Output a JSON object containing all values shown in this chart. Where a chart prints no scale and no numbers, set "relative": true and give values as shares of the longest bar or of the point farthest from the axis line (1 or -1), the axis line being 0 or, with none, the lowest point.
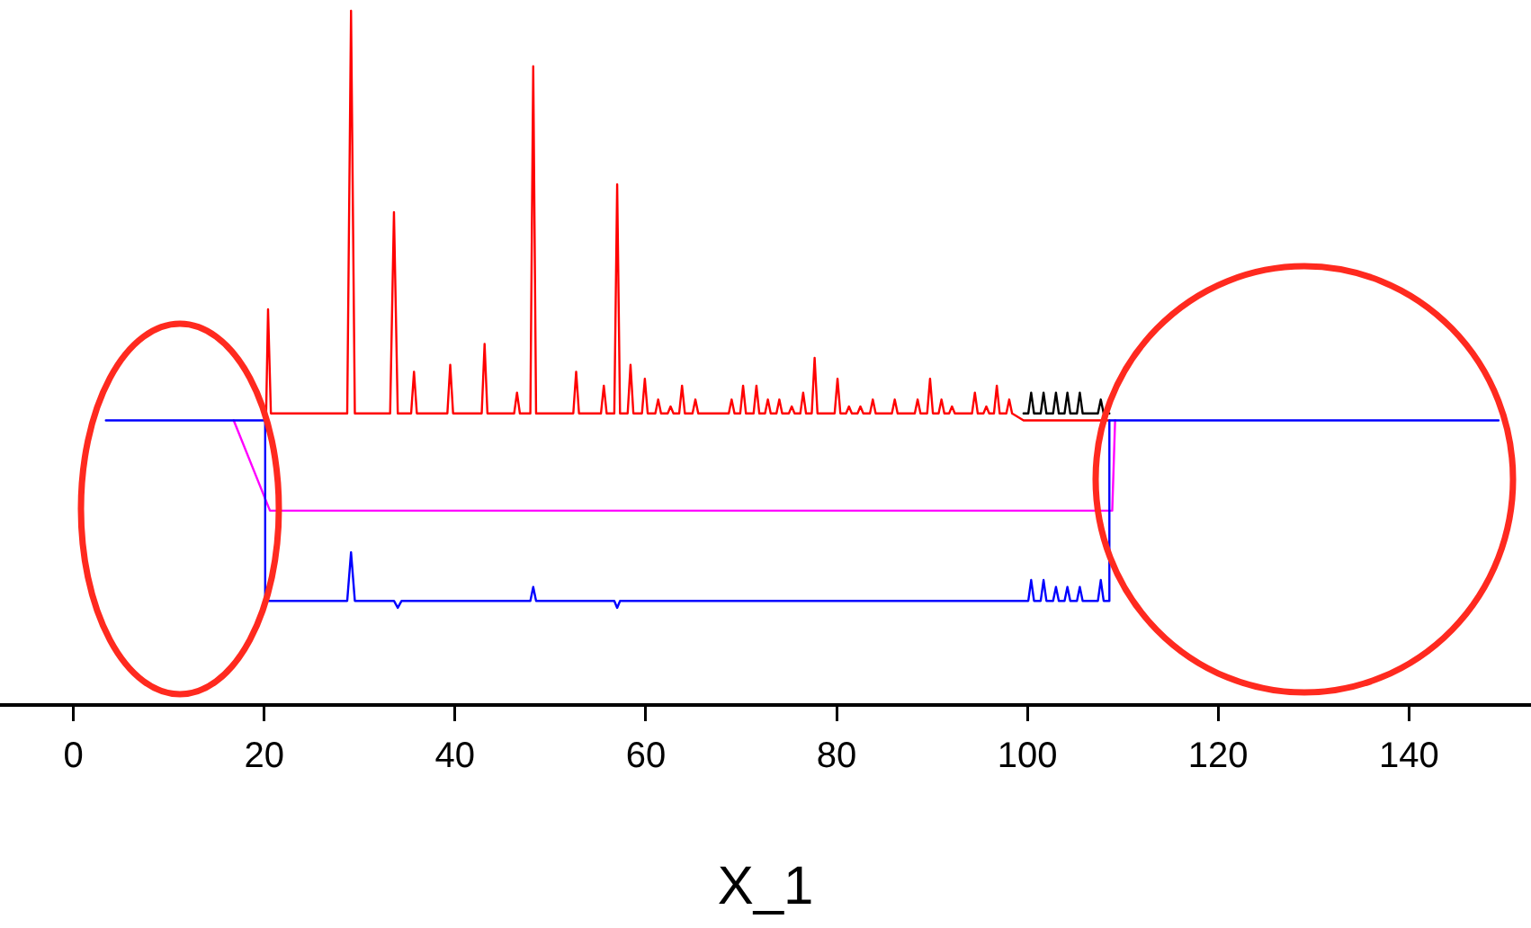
{
  "chart_data": {
    "type": "line",
    "xlabel": "X_1",
    "relative": true,
    "xlim": [
      -7.7,
      152.8
    ],
    "xticks": [
      0,
      20,
      40,
      60,
      80,
      100,
      120,
      140
    ],
    "grid": false,
    "legend": false,
    "marker": "none",
    "line_style": "solid",
    "series": [
      {
        "color": "#000000",
        "x": [
          99.6,
          100.1,
          100.4,
          100.7,
          101.4,
          101.7,
          102.0,
          102.7,
          103.0,
          103.3,
          103.9,
          104.2,
          104.5,
          105.2,
          105.5,
          105.8,
          107.4,
          107.7,
          108.0,
          108.6
        ],
        "values": [
          0.42,
          0.42,
          0.45,
          0.42,
          0.42,
          0.45,
          0.42,
          0.42,
          0.45,
          0.42,
          0.42,
          0.45,
          0.42,
          0.42,
          0.45,
          0.42,
          0.42,
          0.44,
          0.42,
          0.42
        ]
      },
      {
        "color": "#ff0000",
        "x": [
          20,
          20.2,
          20.4,
          20.7,
          28.7,
          29.1,
          29.5,
          33.2,
          33.6,
          34.0,
          35.4,
          35.7,
          36.0,
          39.2,
          39.5,
          39.8,
          42.8,
          43.1,
          43.4,
          46.2,
          46.5,
          46.8,
          47.9,
          48.2,
          48.5,
          52.4,
          52.7,
          53.0,
          55.3,
          55.6,
          55.9,
          56.7,
          57.0,
          57.3,
          58.1,
          58.4,
          58.7,
          59.6,
          59.9,
          60.2,
          61.0,
          61.3,
          61.6,
          62.3,
          62.6,
          62.9,
          63.5,
          63.8,
          64.1,
          64.9,
          65.2,
          65.5,
          68.7,
          69.0,
          69.3,
          69.9,
          70.2,
          70.5,
          71.3,
          71.6,
          71.9,
          72.5,
          72.8,
          73.1,
          73.7,
          74.0,
          74.3,
          75.0,
          75.3,
          75.6,
          76.2,
          76.5,
          76.8,
          77.4,
          77.7,
          78.0,
          79.8,
          80.1,
          80.4,
          81.0,
          81.3,
          81.6,
          82.2,
          82.5,
          82.8,
          83.5,
          83.8,
          84.1,
          85.8,
          86.1,
          86.4,
          88.2,
          88.5,
          88.8,
          89.5,
          89.8,
          90.1,
          90.7,
          91.0,
          91.3,
          91.8,
          92.1,
          92.4,
          94.2,
          94.5,
          94.8,
          95.4,
          95.7,
          96.0,
          96.5,
          96.8,
          97.1,
          97.8,
          98.1,
          98.4,
          99.6,
          108.6
        ],
        "values": [
          0.42,
          0.42,
          0.57,
          0.42,
          0.42,
          1.0,
          0.42,
          0.42,
          0.71,
          0.42,
          0.42,
          0.48,
          0.42,
          0.42,
          0.49,
          0.42,
          0.42,
          0.52,
          0.42,
          0.42,
          0.45,
          0.42,
          0.42,
          0.92,
          0.42,
          0.42,
          0.48,
          0.42,
          0.42,
          0.46,
          0.42,
          0.42,
          0.75,
          0.42,
          0.42,
          0.49,
          0.42,
          0.42,
          0.47,
          0.42,
          0.42,
          0.44,
          0.42,
          0.42,
          0.43,
          0.42,
          0.42,
          0.46,
          0.42,
          0.42,
          0.44,
          0.42,
          0.42,
          0.44,
          0.42,
          0.42,
          0.46,
          0.42,
          0.42,
          0.46,
          0.42,
          0.42,
          0.44,
          0.42,
          0.42,
          0.44,
          0.42,
          0.42,
          0.43,
          0.42,
          0.42,
          0.45,
          0.42,
          0.42,
          0.5,
          0.42,
          0.42,
          0.47,
          0.42,
          0.42,
          0.43,
          0.42,
          0.42,
          0.43,
          0.42,
          0.42,
          0.44,
          0.42,
          0.42,
          0.44,
          0.42,
          0.42,
          0.44,
          0.42,
          0.42,
          0.47,
          0.42,
          0.42,
          0.44,
          0.42,
          0.42,
          0.43,
          0.42,
          0.42,
          0.45,
          0.42,
          0.42,
          0.43,
          0.42,
          0.42,
          0.46,
          0.42,
          0.42,
          0.44,
          0.42,
          0.41,
          0.41
        ]
      },
      {
        "color": "#ff00ff",
        "x": [
          16.8,
          20.6,
          108.9,
          109.2
        ],
        "values": [
          0.41,
          0.28,
          0.28,
          0.41
        ]
      },
      {
        "color": "#0000ff",
        "x": [
          3.4,
          20.1,
          20.1,
          28.7,
          29.1,
          29.5,
          33.6,
          34.0,
          34.4,
          47.9,
          48.2,
          48.5,
          56.7,
          57.0,
          57.3,
          100.1,
          100.4,
          100.7,
          101.4,
          101.7,
          102.0,
          102.7,
          103.0,
          103.3,
          103.9,
          104.2,
          104.5,
          105.2,
          105.5,
          105.8,
          107.4,
          107.7,
          108.0,
          108.6,
          108.6,
          149.4
        ],
        "values": [
          0.41,
          0.41,
          0.15,
          0.15,
          0.22,
          0.15,
          0.15,
          0.14,
          0.15,
          0.15,
          0.17,
          0.15,
          0.15,
          0.14,
          0.15,
          0.15,
          0.18,
          0.15,
          0.15,
          0.18,
          0.15,
          0.15,
          0.17,
          0.15,
          0.15,
          0.17,
          0.15,
          0.15,
          0.17,
          0.15,
          0.15,
          0.18,
          0.15,
          0.15,
          0.41,
          0.41
        ]
      }
    ]
  }
}
